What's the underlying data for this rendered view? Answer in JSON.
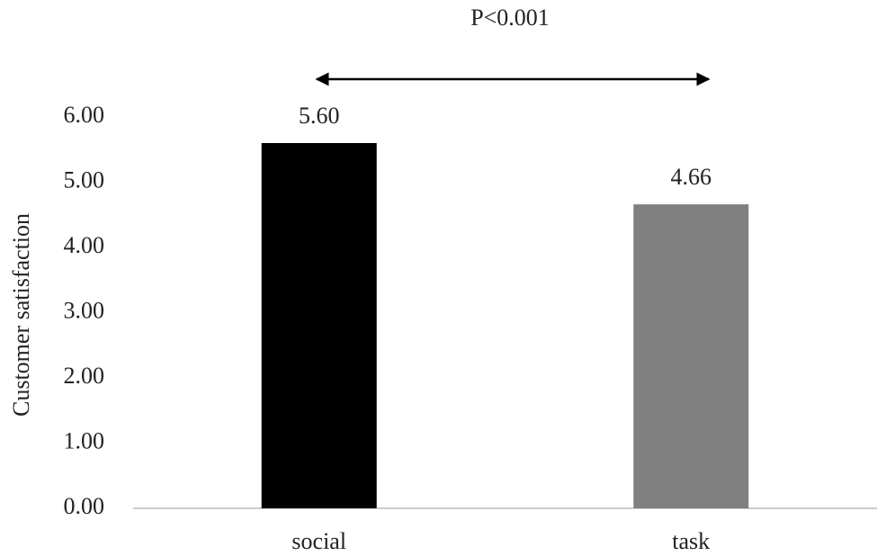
{
  "chart_data": {
    "type": "bar",
    "annotation": "P<0.001",
    "y_label": "Customer satisfaction",
    "categories": [
      "social",
      "task"
    ],
    "values": [
      5.6,
      4.66
    ],
    "value_labels": [
      "5.60",
      "4.66"
    ],
    "colors": [
      "#000000",
      "#808080"
    ],
    "ylim": [
      0,
      6
    ],
    "yticks": [
      {
        "value": 0,
        "label": "0.00"
      },
      {
        "value": 1,
        "label": "1.00"
      },
      {
        "value": 2,
        "label": "2.00"
      },
      {
        "value": 3,
        "label": "3.00"
      },
      {
        "value": 4,
        "label": "4.00"
      },
      {
        "value": 5,
        "label": "5.00"
      },
      {
        "value": 6,
        "label": "6.00"
      }
    ],
    "grid": false
  }
}
